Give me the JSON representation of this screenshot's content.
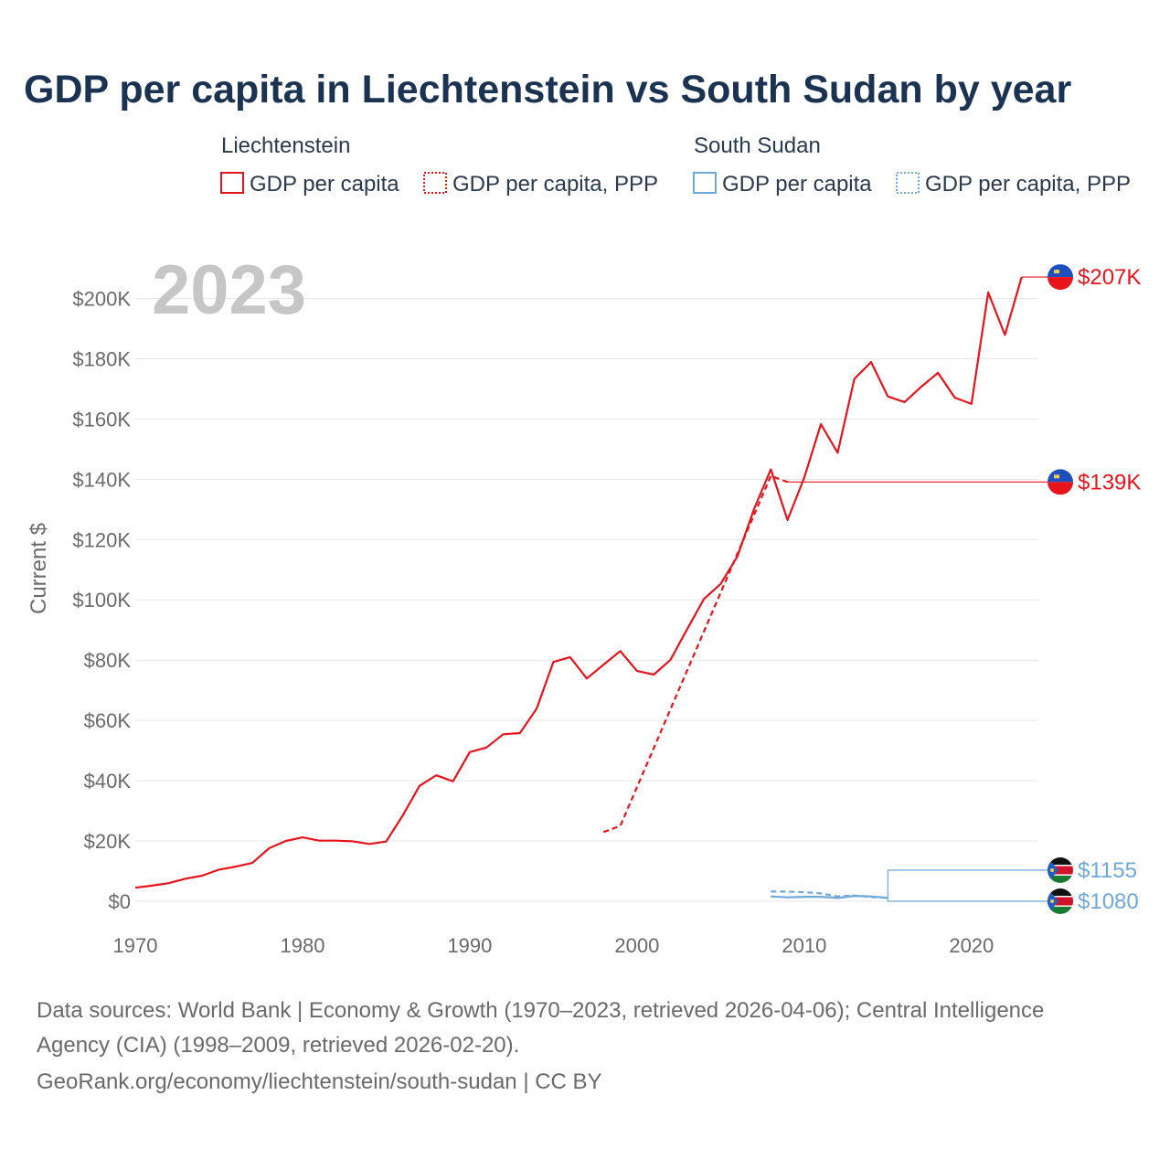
{
  "chart_data": {
    "type": "line",
    "title": "GDP per capita in Liechtenstein vs South Sudan by year",
    "ylabel": "Current $",
    "xlabel": "",
    "year_label": "2023",
    "xlim": [
      1970,
      2024
    ],
    "ylim": [
      0,
      207000
    ],
    "x_ticks": [
      1970,
      1980,
      1990,
      2000,
      2010,
      2020
    ],
    "y_ticks": [
      {
        "value": 0,
        "label": "$0"
      },
      {
        "value": 20000,
        "label": "$20K"
      },
      {
        "value": 40000,
        "label": "$40K"
      },
      {
        "value": 60000,
        "label": "$60K"
      },
      {
        "value": 80000,
        "label": "$80K"
      },
      {
        "value": 100000,
        "label": "$100K"
      },
      {
        "value": 120000,
        "label": "$120K"
      },
      {
        "value": 140000,
        "label": "$140K"
      },
      {
        "value": 160000,
        "label": "$160K"
      },
      {
        "value": 180000,
        "label": "$180K"
      },
      {
        "value": 200000,
        "label": "$200K"
      }
    ],
    "legend": [
      {
        "group": "Liechtenstein",
        "items": [
          "GDP per capita",
          "GDP per capita, PPP"
        ],
        "color": "#e8141c"
      },
      {
        "group": "South Sudan",
        "items": [
          "GDP per capita",
          "GDP per capita, PPP"
        ],
        "color": "#6fa8dc"
      }
    ],
    "series": [
      {
        "name": "Liechtenstein GDP per capita",
        "country": "Liechtenstein",
        "color": "#e8141c",
        "dash": false,
        "end_label": "$207K",
        "x": [
          1970,
          1971,
          1972,
          1973,
          1974,
          1975,
          1976,
          1977,
          1978,
          1979,
          1980,
          1981,
          1982,
          1983,
          1984,
          1985,
          1986,
          1987,
          1988,
          1989,
          1990,
          1991,
          1992,
          1993,
          1994,
          1995,
          1996,
          1997,
          1998,
          1999,
          2000,
          2001,
          2002,
          2003,
          2004,
          2005,
          2006,
          2007,
          2008,
          2009,
          2010,
          2011,
          2012,
          2013,
          2014,
          2015,
          2016,
          2017,
          2018,
          2019,
          2020,
          2021,
          2022,
          2023
        ],
        "values": [
          4500,
          5200,
          6000,
          7500,
          8500,
          10500,
          11500,
          12700,
          17600,
          20000,
          21200,
          20100,
          20100,
          19900,
          19000,
          19800,
          28500,
          38300,
          41800,
          39800,
          49500,
          51000,
          55400,
          55800,
          63900,
          79400,
          81000,
          73900,
          78500,
          83000,
          76400,
          75200,
          80100,
          90300,
          100300,
          105300,
          114400,
          130200,
          143300,
          126500,
          140600,
          158300,
          148800,
          173300,
          178900,
          167500,
          165600,
          170700,
          175300,
          167100,
          165000,
          202000,
          187900,
          207100
        ]
      },
      {
        "name": "Liechtenstein GDP per capita, PPP",
        "country": "Liechtenstein",
        "color": "#e8141c",
        "dash": true,
        "end_label": "$139K",
        "x": [
          1998,
          1999,
          2008,
          2009
        ],
        "values": [
          23000,
          25000,
          141100,
          139100
        ]
      },
      {
        "name": "South Sudan GDP per capita",
        "country": "South Sudan",
        "color": "#6fa8dc",
        "dash": false,
        "end_label": "$1080",
        "x": [
          2008,
          2009,
          2010,
          2011,
          2012,
          2013,
          2014,
          2015
        ],
        "values": [
          1600,
          1300,
          1500,
          1500,
          1100,
          1800,
          1600,
          1080
        ]
      },
      {
        "name": "South Sudan GDP per capita, PPP",
        "country": "South Sudan",
        "color": "#6fa8dc",
        "dash": true,
        "end_label": "$1155",
        "x": [
          2008,
          2009,
          2010,
          2011,
          2012,
          2013,
          2014,
          2015
        ],
        "values": [
          3200,
          3200,
          3000,
          2600,
          1600,
          1900,
          1400,
          1155
        ]
      }
    ]
  },
  "sources": {
    "line1": "Data sources: World Bank | Economy & Growth (1970–2023, retrieved 2026-04-06); Central Intelligence",
    "line2": "Agency (CIA) (1998–2009, retrieved 2026-02-20).",
    "line3": "GeoRank.org/economy/liechtenstein/south-sudan | CC BY"
  }
}
